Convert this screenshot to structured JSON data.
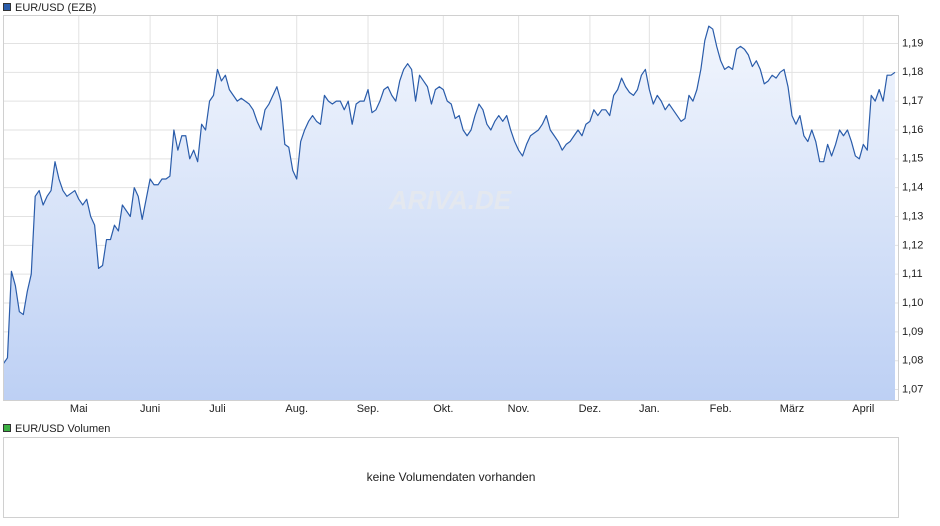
{
  "chart_data": {
    "type": "line",
    "series": [
      {
        "name": "EUR/USD (EZB)",
        "color": "#2a5caa",
        "values": [
          1.079,
          1.081,
          1.111,
          1.106,
          1.097,
          1.096,
          1.104,
          1.11,
          1.137,
          1.139,
          1.134,
          1.137,
          1.139,
          1.149,
          1.143,
          1.139,
          1.137,
          1.138,
          1.139,
          1.136,
          1.134,
          1.136,
          1.13,
          1.127,
          1.112,
          1.113,
          1.122,
          1.122,
          1.127,
          1.125,
          1.134,
          1.132,
          1.13,
          1.14,
          1.137,
          1.129,
          1.136,
          1.143,
          1.141,
          1.141,
          1.143,
          1.143,
          1.144,
          1.16,
          1.153,
          1.158,
          1.158,
          1.15,
          1.153,
          1.149,
          1.162,
          1.16,
          1.17,
          1.172,
          1.181,
          1.177,
          1.179,
          1.174,
          1.172,
          1.17,
          1.171,
          1.17,
          1.169,
          1.167,
          1.163,
          1.16,
          1.167,
          1.169,
          1.172,
          1.175,
          1.17,
          1.155,
          1.154,
          1.146,
          1.143,
          1.156,
          1.16,
          1.163,
          1.165,
          1.163,
          1.162,
          1.172,
          1.17,
          1.169,
          1.17,
          1.17,
          1.167,
          1.17,
          1.162,
          1.169,
          1.17,
          1.17,
          1.174,
          1.166,
          1.167,
          1.17,
          1.174,
          1.175,
          1.172,
          1.17,
          1.177,
          1.181,
          1.183,
          1.181,
          1.17,
          1.179,
          1.177,
          1.175,
          1.169,
          1.174,
          1.175,
          1.174,
          1.17,
          1.169,
          1.164,
          1.165,
          1.16,
          1.158,
          1.16,
          1.165,
          1.169,
          1.167,
          1.162,
          1.16,
          1.163,
          1.165,
          1.163,
          1.165,
          1.16,
          1.156,
          1.153,
          1.151,
          1.155,
          1.158,
          1.159,
          1.16,
          1.162,
          1.165,
          1.16,
          1.158,
          1.156,
          1.153,
          1.155,
          1.156,
          1.158,
          1.16,
          1.158,
          1.162,
          1.163,
          1.167,
          1.165,
          1.167,
          1.167,
          1.165,
          1.172,
          1.174,
          1.178,
          1.175,
          1.173,
          1.172,
          1.174,
          1.179,
          1.181,
          1.174,
          1.169,
          1.172,
          1.17,
          1.167,
          1.169,
          1.167,
          1.165,
          1.163,
          1.164,
          1.172,
          1.17,
          1.174,
          1.181,
          1.191,
          1.196,
          1.195,
          1.189,
          1.184,
          1.181,
          1.182,
          1.181,
          1.188,
          1.189,
          1.188,
          1.186,
          1.182,
          1.184,
          1.181,
          1.176,
          1.177,
          1.179,
          1.178,
          1.18,
          1.181,
          1.175,
          1.165,
          1.162,
          1.165,
          1.158,
          1.156,
          1.16,
          1.156,
          1.149,
          1.149,
          1.155,
          1.151,
          1.155,
          1.16,
          1.158,
          1.16,
          1.156,
          1.151,
          1.15,
          1.155,
          1.153,
          1.172,
          1.17,
          1.174,
          1.17,
          1.179,
          1.179,
          1.18
        ]
      }
    ],
    "categories": [
      null,
      null,
      null,
      null,
      null,
      null,
      null,
      null,
      null,
      null,
      null,
      null,
      null,
      null,
      null,
      null,
      null,
      null,
      null,
      "Mai",
      null,
      null,
      null,
      null,
      null,
      null,
      null,
      null,
      null,
      null,
      null,
      null,
      null,
      null,
      null,
      null,
      null,
      "Juni",
      null,
      null,
      null,
      null,
      null,
      null,
      null,
      null,
      null,
      null,
      null,
      null,
      null,
      null,
      null,
      null,
      "Juli",
      null,
      null,
      null,
      null,
      null,
      null,
      null,
      null,
      null,
      null,
      null,
      null,
      null,
      null,
      null,
      null,
      null,
      null,
      null,
      "Aug.",
      null,
      null,
      null,
      null,
      null,
      null,
      null,
      null,
      null,
      null,
      null,
      null,
      null,
      null,
      null,
      null,
      null,
      "Sep.",
      null,
      null,
      null,
      null,
      null,
      null,
      null,
      null,
      null,
      null,
      null,
      null,
      null,
      null,
      null,
      null,
      null,
      null,
      "Okt.",
      null,
      null,
      null,
      null,
      null,
      null,
      null,
      null,
      null,
      null,
      null,
      null,
      null,
      null,
      null,
      null,
      null,
      null,
      "Nov.",
      null,
      null,
      null,
      null,
      null,
      null,
      null,
      null,
      null,
      null,
      null,
      null,
      null,
      null,
      null,
      null,
      null,
      "Dez.",
      null,
      null,
      null,
      null,
      null,
      null,
      null,
      null,
      null,
      null,
      null,
      null,
      null,
      null,
      "Jan.",
      null,
      null,
      null,
      null,
      null,
      null,
      null,
      null,
      null,
      null,
      null,
      null,
      null,
      null,
      null,
      null,
      null,
      "Feb.",
      null,
      null,
      null,
      null,
      null,
      null,
      null,
      null,
      null,
      null,
      null,
      null,
      null,
      null,
      null,
      null,
      null,
      "März",
      null,
      null,
      null,
      null,
      null,
      null,
      null,
      null,
      null,
      null,
      null,
      null,
      null,
      null,
      null,
      null,
      null,
      "April",
      null,
      null,
      null,
      null,
      null,
      null,
      null,
      null
    ],
    "ylim": [
      1.0662,
      1.1997
    ],
    "yticks": [
      {
        "value": 1.07,
        "label": "1,07"
      },
      {
        "value": 1.08,
        "label": "1,08"
      },
      {
        "value": 1.09,
        "label": "1,09"
      },
      {
        "value": 1.1,
        "label": "1,10"
      },
      {
        "value": 1.11,
        "label": "1,11"
      },
      {
        "value": 1.12,
        "label": "1,12"
      },
      {
        "value": 1.13,
        "label": "1,13"
      },
      {
        "value": 1.14,
        "label": "1,14"
      },
      {
        "value": 1.15,
        "label": "1,15"
      },
      {
        "value": 1.16,
        "label": "1,16"
      },
      {
        "value": 1.17,
        "label": "1,17"
      },
      {
        "value": 1.18,
        "label": "1,18"
      },
      {
        "value": 1.19,
        "label": "1,19"
      }
    ],
    "grid": true,
    "watermark": "ARIVA.DE"
  },
  "volume_panel": {
    "legend": "EUR/USD Volumen",
    "legend_color": "#3cb043",
    "message": "keine Volumendaten vorhanden"
  }
}
